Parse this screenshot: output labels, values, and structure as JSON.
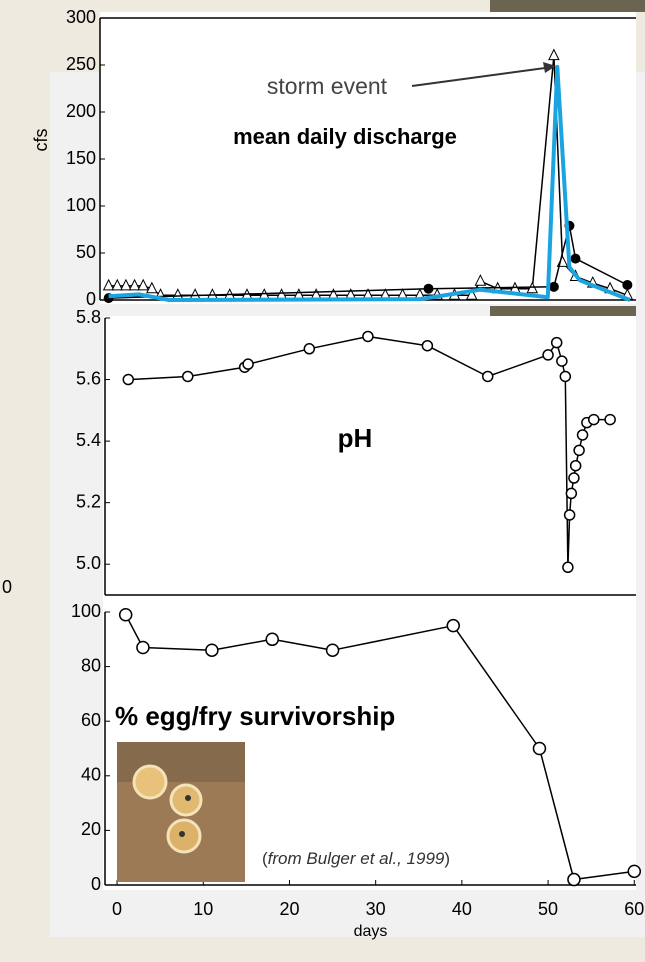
{
  "background_text": "0",
  "chart_data": [
    {
      "type": "line",
      "ylabel": "cfs",
      "annotation": "storm event",
      "xlim": [
        -2,
        60
      ],
      "ylim": [
        0,
        300
      ],
      "yticks": [
        0,
        50,
        100,
        150,
        200,
        250,
        300
      ],
      "series": [
        {
          "name": "mean daily discharge",
          "color": "#1ca4e0",
          "marker": "none",
          "x": [
            -1,
            2.5,
            6,
            35,
            42,
            49.8,
            50.9,
            52.3,
            53.5,
            59.3
          ],
          "values": [
            4,
            6,
            0,
            1,
            11,
            3,
            248,
            35,
            21,
            0
          ]
        },
        {
          "color": "#000000",
          "marker": "triangle",
          "x": [
            -1,
            0,
            1,
            2,
            3,
            4,
            5,
            7,
            9,
            11,
            13,
            15,
            17,
            19,
            21,
            23,
            25,
            27,
            29,
            31,
            33,
            35,
            37,
            39,
            41,
            42,
            44,
            46,
            48,
            50.5,
            51.5,
            53,
            55,
            57,
            59
          ],
          "values": [
            15,
            15,
            15,
            15,
            15,
            12,
            5,
            5,
            5,
            5,
            5,
            5,
            5,
            5,
            5,
            5,
            5,
            5,
            5,
            5,
            5,
            5,
            5,
            5,
            5,
            20,
            12,
            12,
            12,
            260,
            40,
            25,
            18,
            12,
            5
          ]
        },
        {
          "color": "#000000",
          "marker": "dot",
          "x": [
            -1,
            36,
            50.5,
            52.3,
            53,
            59
          ],
          "values": [
            2,
            12,
            14,
            79,
            44,
            16
          ]
        }
      ]
    },
    {
      "type": "line",
      "title": "pH",
      "xlim": [
        -1.4,
        60.2
      ],
      "ylim": [
        4.9,
        5.8
      ],
      "yticks": [
        {
          "value": 5,
          "label": "5.0"
        },
        5.2,
        5.4,
        5.6,
        5.8
      ],
      "series": [
        {
          "color": "#000000",
          "marker": "circle",
          "x": [
            1.3,
            8.2,
            14.8,
            15.2,
            22.3,
            29.1,
            36,
            43,
            50,
            51,
            51.6,
            52,
            52.3,
            52.5,
            52.7,
            53,
            53.2,
            53.6,
            54,
            54.5,
            55.3,
            57.2
          ],
          "values": [
            5.6,
            5.61,
            5.64,
            5.65,
            5.7,
            5.74,
            5.71,
            5.61,
            5.68,
            5.72,
            5.66,
            5.61,
            4.99,
            5.16,
            5.23,
            5.28,
            5.32,
            5.37,
            5.42,
            5.46,
            5.47,
            5.47
          ]
        }
      ]
    },
    {
      "type": "line",
      "title": "% egg/fry survivorship",
      "xlabel": "days",
      "xlim": [
        -1.4,
        60.2
      ],
      "ylim": [
        0,
        100
      ],
      "xticks": [
        0,
        10,
        20,
        30,
        40,
        50,
        60
      ],
      "yticks": [
        0,
        20,
        40,
        60,
        80,
        100
      ],
      "series": [
        {
          "color": "#000000",
          "marker": "circle",
          "x": [
            1,
            3,
            11,
            18,
            25,
            39,
            49,
            53,
            60
          ],
          "values": [
            99,
            87,
            86,
            90,
            86,
            95,
            50,
            2,
            5
          ]
        }
      ],
      "citation": {
        "open": "(",
        "text": "from Bulger et al., 1999",
        "close": ")"
      }
    }
  ]
}
